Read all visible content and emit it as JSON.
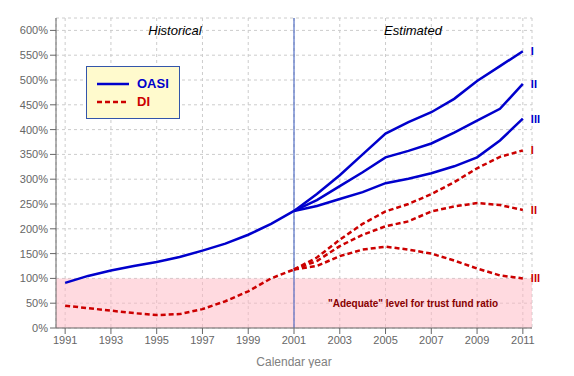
{
  "chart_data": {
    "type": "line",
    "x_label": "Calendar year",
    "x": [
      1991,
      1992,
      1993,
      1994,
      1995,
      1996,
      1997,
      1998,
      1999,
      2000,
      2001,
      2002,
      2003,
      2004,
      2005,
      2006,
      2007,
      2008,
      2009,
      2010,
      2011
    ],
    "series": [
      {
        "name": "OASI",
        "color": "#0000CC",
        "line_style": "solid",
        "values": [
          0.91,
          1.05,
          1.16,
          1.25,
          1.33,
          1.43,
          1.56,
          1.7,
          1.88,
          2.1,
          2.36,
          null,
          null,
          null,
          null,
          null,
          null,
          null,
          null,
          null,
          null
        ]
      },
      {
        "name": "I",
        "color": "#0000CC",
        "line_style": "solid",
        "values": [
          null,
          null,
          null,
          null,
          null,
          null,
          null,
          null,
          null,
          null,
          2.36,
          2.7,
          3.08,
          3.5,
          3.92,
          4.15,
          4.35,
          4.62,
          4.98,
          5.28,
          5.58
        ]
      },
      {
        "name": "II",
        "color": "#0000CC",
        "line_style": "solid",
        "values": [
          null,
          null,
          null,
          null,
          null,
          null,
          null,
          null,
          null,
          null,
          2.36,
          2.58,
          2.86,
          3.14,
          3.44,
          3.57,
          3.72,
          3.94,
          4.18,
          4.42,
          4.92
        ]
      },
      {
        "name": "III",
        "color": "#0000CC",
        "line_style": "solid",
        "values": [
          null,
          null,
          null,
          null,
          null,
          null,
          null,
          null,
          null,
          null,
          2.36,
          2.46,
          2.6,
          2.74,
          2.92,
          3.01,
          3.12,
          3.26,
          3.44,
          3.78,
          4.22
        ]
      },
      {
        "name": "DI",
        "color": "#CC0000",
        "line_style": "dashed",
        "values": [
          0.45,
          0.4,
          0.35,
          0.3,
          0.26,
          0.28,
          0.38,
          0.54,
          0.74,
          1.0,
          1.18,
          null,
          null,
          null,
          null,
          null,
          null,
          null,
          null,
          null,
          null
        ]
      },
      {
        "name": "I",
        "color": "#CC0000",
        "line_style": "dashed",
        "values": [
          null,
          null,
          null,
          null,
          null,
          null,
          null,
          null,
          null,
          null,
          1.18,
          1.42,
          1.78,
          2.1,
          2.35,
          2.5,
          2.7,
          2.94,
          3.22,
          3.45,
          3.58
        ]
      },
      {
        "name": "II",
        "color": "#CC0000",
        "line_style": "dashed",
        "values": [
          null,
          null,
          null,
          null,
          null,
          null,
          null,
          null,
          null,
          null,
          1.18,
          1.35,
          1.65,
          1.88,
          2.05,
          2.15,
          2.35,
          2.45,
          2.52,
          2.48,
          2.38
        ]
      },
      {
        "name": "III",
        "color": "#CC0000",
        "line_style": "dashed",
        "values": [
          null,
          null,
          null,
          null,
          null,
          null,
          null,
          null,
          null,
          null,
          1.18,
          1.25,
          1.45,
          1.58,
          1.64,
          1.58,
          1.5,
          1.36,
          1.2,
          1.06,
          1.0
        ]
      }
    ],
    "divider": {
      "x": 2001,
      "labels": [
        "Historical",
        "Estimated"
      ]
    },
    "adequate": {
      "y": 1.0,
      "label": "\"Adequate\" level for trust fund ratio"
    },
    "xlim": [
      1990.6,
      2011.4
    ],
    "xticks": [
      1991,
      1993,
      1995,
      1997,
      1999,
      2001,
      2003,
      2005,
      2007,
      2009,
      2011
    ],
    "ylim": [
      0,
      6.25
    ],
    "yticks": [
      {
        "value": 0.0,
        "label": "0%"
      },
      {
        "value": 0.5,
        "label": "50%"
      },
      {
        "value": 1.0,
        "label": "100%"
      },
      {
        "value": 1.5,
        "label": "150%"
      },
      {
        "value": 2.0,
        "label": "200%"
      },
      {
        "value": 2.5,
        "label": "250%"
      },
      {
        "value": 3.0,
        "label": "300%"
      },
      {
        "value": 3.5,
        "label": "350%"
      },
      {
        "value": 4.0,
        "label": "400%"
      },
      {
        "value": 4.5,
        "label": "450%"
      },
      {
        "value": 5.0,
        "label": "500%"
      },
      {
        "value": 5.5,
        "label": "550%"
      },
      {
        "value": 6.0,
        "label": "600%"
      }
    ],
    "grid": true,
    "legend": "upper left"
  }
}
